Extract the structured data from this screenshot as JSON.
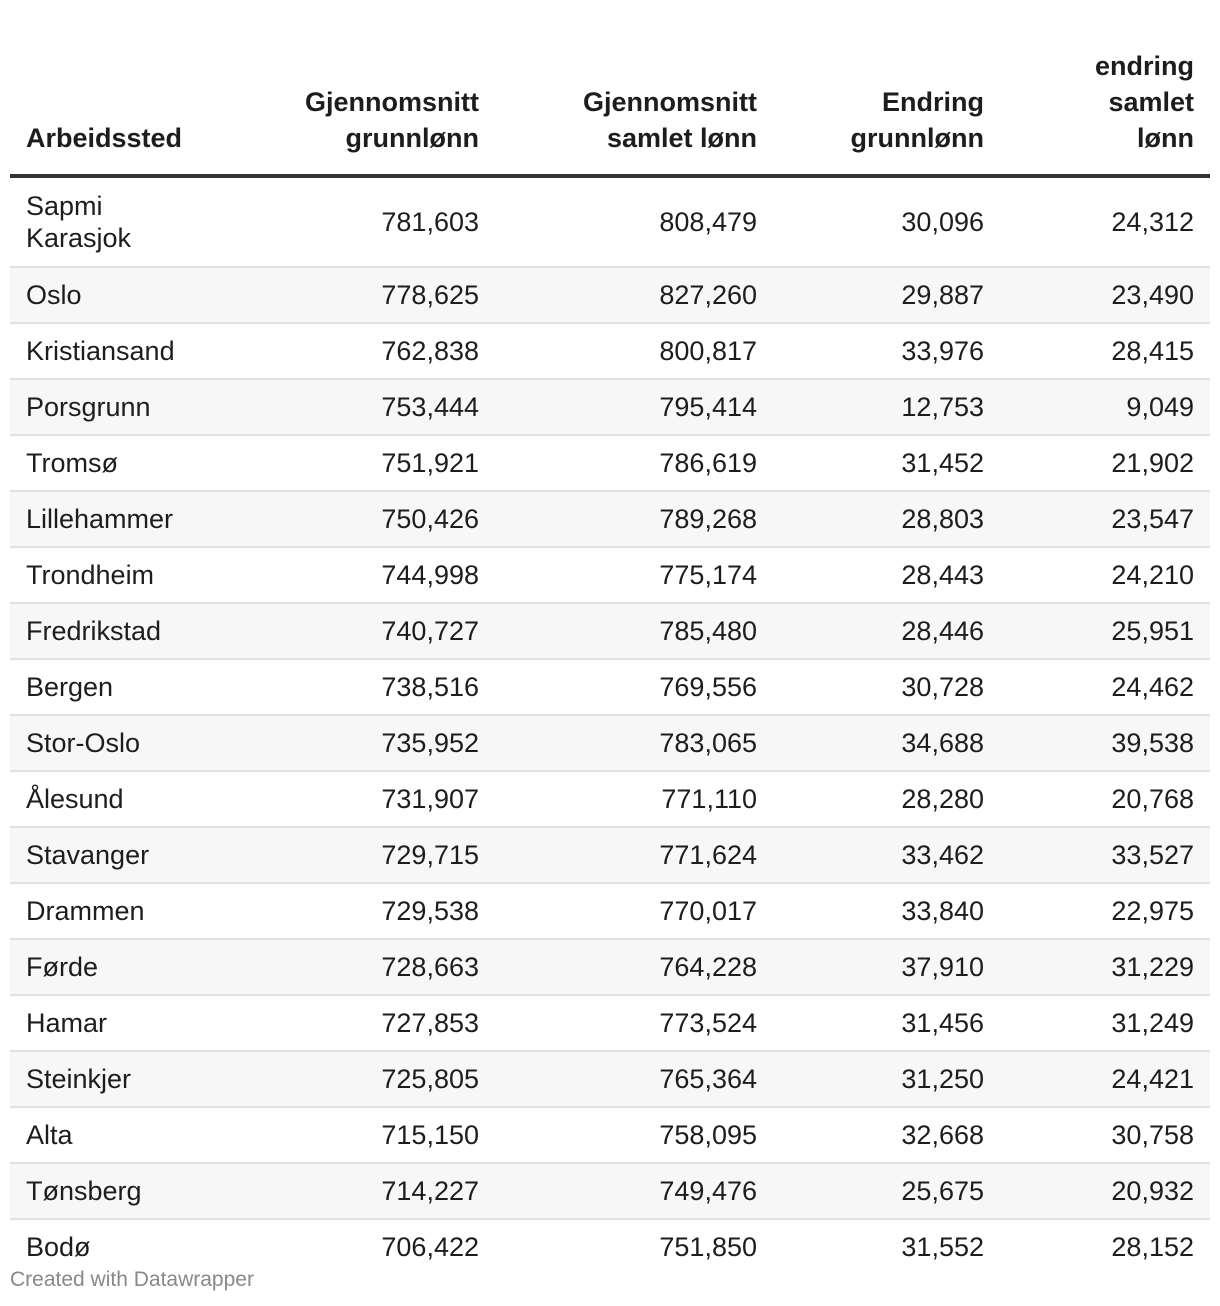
{
  "chart_data": {
    "type": "table",
    "columns": [
      [
        "Arbeidssted"
      ],
      [
        "Gjennomsnitt",
        "grunnlønn"
      ],
      [
        "Gjennomsnitt",
        "samlet lønn"
      ],
      [
        "Endring",
        "grunnlønn"
      ],
      [
        "endring",
        "samlet",
        "lønn"
      ]
    ],
    "rows": [
      [
        [
          "Sapmi",
          "Karasjok"
        ],
        "781,603",
        "808,479",
        "30,096",
        "24,312"
      ],
      [
        [
          "Oslo"
        ],
        "778,625",
        "827,260",
        "29,887",
        "23,490"
      ],
      [
        [
          "Kristiansand"
        ],
        "762,838",
        "800,817",
        "33,976",
        "28,415"
      ],
      [
        [
          "Porsgrunn"
        ],
        "753,444",
        "795,414",
        "12,753",
        "9,049"
      ],
      [
        [
          "Tromsø"
        ],
        "751,921",
        "786,619",
        "31,452",
        "21,902"
      ],
      [
        [
          "Lillehammer"
        ],
        "750,426",
        "789,268",
        "28,803",
        "23,547"
      ],
      [
        [
          "Trondheim"
        ],
        "744,998",
        "775,174",
        "28,443",
        "24,210"
      ],
      [
        [
          "Fredrikstad"
        ],
        "740,727",
        "785,480",
        "28,446",
        "25,951"
      ],
      [
        [
          "Bergen"
        ],
        "738,516",
        "769,556",
        "30,728",
        "24,462"
      ],
      [
        [
          "Stor-Oslo"
        ],
        "735,952",
        "783,065",
        "34,688",
        "39,538"
      ],
      [
        [
          "Ålesund"
        ],
        "731,907",
        "771,110",
        "28,280",
        "20,768"
      ],
      [
        [
          "Stavanger"
        ],
        "729,715",
        "771,624",
        "33,462",
        "33,527"
      ],
      [
        [
          "Drammen"
        ],
        "729,538",
        "770,017",
        "33,840",
        "22,975"
      ],
      [
        [
          "Førde"
        ],
        "728,663",
        "764,228",
        "37,910",
        "31,229"
      ],
      [
        [
          "Hamar"
        ],
        "727,853",
        "773,524",
        "31,456",
        "31,249"
      ],
      [
        [
          "Steinkjer"
        ],
        "725,805",
        "765,364",
        "31,250",
        "24,421"
      ],
      [
        [
          "Alta"
        ],
        "715,150",
        "758,095",
        "32,668",
        "30,758"
      ],
      [
        [
          "Tønsberg"
        ],
        "714,227",
        "749,476",
        "25,675",
        "20,932"
      ],
      [
        [
          "Bodø"
        ],
        "706,422",
        "751,850",
        "31,552",
        "28,152"
      ]
    ]
  },
  "footer": {
    "credit": "Created with Datawrapper"
  }
}
